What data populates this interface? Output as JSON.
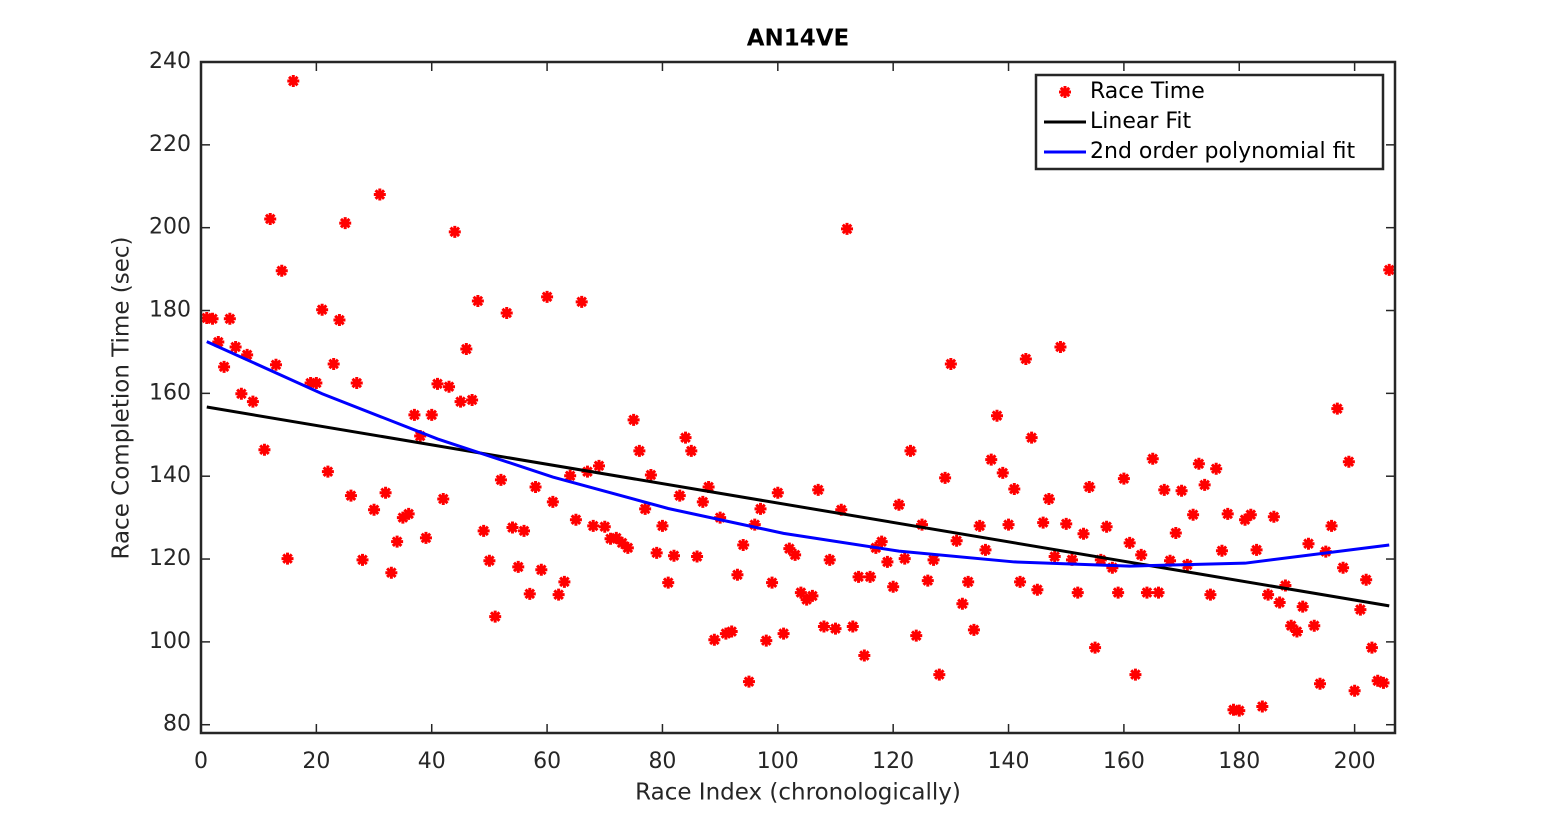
{
  "chart_data": {
    "type": "scatter",
    "title": "AN14VE",
    "x_label": "Race Index (chronologically)",
    "y_label": "Race Completion Time (sec)",
    "xlim": [
      0,
      207
    ],
    "ylim": [
      78,
      240
    ],
    "xticks": [
      0,
      20,
      40,
      60,
      80,
      100,
      120,
      140,
      160,
      180,
      200
    ],
    "yticks": [
      80,
      100,
      120,
      140,
      160,
      180,
      200,
      220,
      240
    ],
    "legend": "upper right",
    "grid": false,
    "series": [
      {
        "name": "Race Time",
        "color": "#ff0000",
        "style": "markers",
        "x": [
          1,
          2,
          3,
          4,
          5,
          6,
          7,
          8,
          9,
          11,
          12,
          13,
          14,
          15,
          16,
          19,
          20,
          21,
          22,
          23,
          24,
          25,
          26,
          27,
          28,
          30,
          31,
          32,
          33,
          34,
          35,
          36,
          37,
          38,
          39,
          40,
          41,
          42,
          43,
          44,
          45,
          46,
          47,
          48,
          49,
          50,
          51,
          52,
          53,
          54,
          55,
          56,
          57,
          58,
          59,
          60,
          61,
          62,
          63,
          64,
          65,
          66,
          67,
          68,
          69,
          70,
          71,
          72,
          73,
          74,
          75,
          76,
          77,
          78,
          79,
          80,
          81,
          82,
          83,
          84,
          85,
          86,
          87,
          88,
          89,
          90,
          91,
          92,
          93,
          94,
          95,
          96,
          97,
          98,
          99,
          100,
          101,
          102,
          103,
          104,
          105,
          106,
          107,
          108,
          109,
          110,
          111,
          112,
          113,
          114,
          115,
          116,
          117,
          118,
          119,
          120,
          121,
          122,
          123,
          124,
          125,
          126,
          127,
          128,
          129,
          130,
          131,
          132,
          133,
          134,
          135,
          136,
          137,
          138,
          139,
          140,
          141,
          142,
          143,
          144,
          145,
          146,
          147,
          148,
          149,
          150,
          151,
          152,
          153,
          154,
          155,
          156,
          157,
          158,
          159,
          160,
          161,
          162,
          163,
          164,
          165,
          166,
          167,
          168,
          169,
          170,
          171,
          172,
          173,
          174,
          175,
          176,
          177,
          178,
          179,
          180,
          181,
          182,
          183,
          184,
          185,
          186,
          187,
          188,
          189,
          190,
          191,
          192,
          193,
          194,
          195,
          196,
          197,
          198,
          199,
          200,
          201,
          202,
          203,
          204,
          205,
          206
        ],
        "values": [
          178.2,
          178,
          172.4,
          166.4,
          178,
          171.2,
          159.9,
          169.3,
          158,
          146.4,
          202.1,
          166.9,
          189.6,
          120.1,
          235.4,
          162.5,
          162.5,
          180.2,
          141.1,
          167.1,
          177.7,
          201.1,
          135.3,
          162.5,
          119.8,
          131.9,
          208,
          136,
          116.7,
          124.2,
          130,
          130.9,
          154.8,
          149.7,
          125.1,
          154.8,
          162.3,
          134.5,
          161.6,
          199,
          158,
          170.7,
          158.4,
          182.3,
          126.8,
          119.6,
          106.1,
          139.1,
          179.4,
          127.6,
          118.1,
          126.8,
          111.6,
          137.4,
          117.4,
          183.3,
          133.8,
          111.4,
          114.5,
          140.1,
          129.5,
          182.1,
          141.1,
          128,
          142.5,
          127.8,
          124.9,
          125.1,
          123.9,
          122.7,
          153.6,
          146.1,
          132.1,
          140.3,
          121.5,
          128,
          114.3,
          120.8,
          135.3,
          149.3,
          146.1,
          120.6,
          133.8,
          137.4,
          100.5,
          130,
          102,
          102.5,
          116.2,
          123.4,
          90.4,
          128.3,
          132.1,
          100.3,
          114.3,
          136,
          102,
          122.5,
          121,
          111.9,
          110.2,
          111.1,
          136.7,
          103.7,
          119.8,
          103.2,
          131.9,
          199.7,
          103.7,
          115.7,
          96.7,
          115.7,
          122.7,
          124.2,
          119.3,
          113.3,
          133.1,
          120.1,
          146.1,
          101.5,
          128.3,
          114.8,
          119.8,
          92.1,
          139.6,
          167.1,
          124.4,
          109.2,
          114.5,
          102.9,
          128,
          122.2,
          144,
          154.6,
          140.8,
          128.3,
          136.9,
          114.5,
          168.3,
          149.3,
          112.6,
          128.8,
          134.5,
          120.6,
          171.2,
          128.5,
          119.8,
          111.9,
          126.1,
          137.4,
          98.6,
          119.8,
          127.8,
          117.9,
          111.9,
          139.4,
          123.9,
          92.1,
          121,
          111.9,
          144.2,
          111.9,
          136.7,
          119.6,
          126.3,
          136.5,
          118.6,
          130.7,
          143,
          137.9,
          111.4,
          141.8,
          122,
          130.9,
          83.6,
          83.4,
          129.5,
          130.7,
          122.2,
          84.4,
          111.4,
          130.2,
          109.5,
          113.6,
          103.9,
          102.5,
          108.5,
          123.7,
          103.9,
          89.9,
          121.8,
          128,
          156.3,
          117.9,
          143.5,
          88.2,
          107.8,
          115,
          98.6,
          90.6,
          90.1,
          189.8
        ]
      },
      {
        "name": "Linear Fit",
        "color": "#000000",
        "style": "line",
        "x": [
          1,
          206
        ],
        "values": [
          156.7,
          108.7
        ]
      },
      {
        "name": "2nd order polynomial fit",
        "color": "#0000ff",
        "style": "line",
        "x": [
          1,
          21,
          41,
          61,
          81,
          101,
          121,
          141,
          161,
          181,
          206
        ],
        "values": [
          172.5,
          159.9,
          149.0,
          139.8,
          132.2,
          126.2,
          121.9,
          119.3,
          118.3,
          119.0,
          123.4
        ]
      }
    ]
  }
}
